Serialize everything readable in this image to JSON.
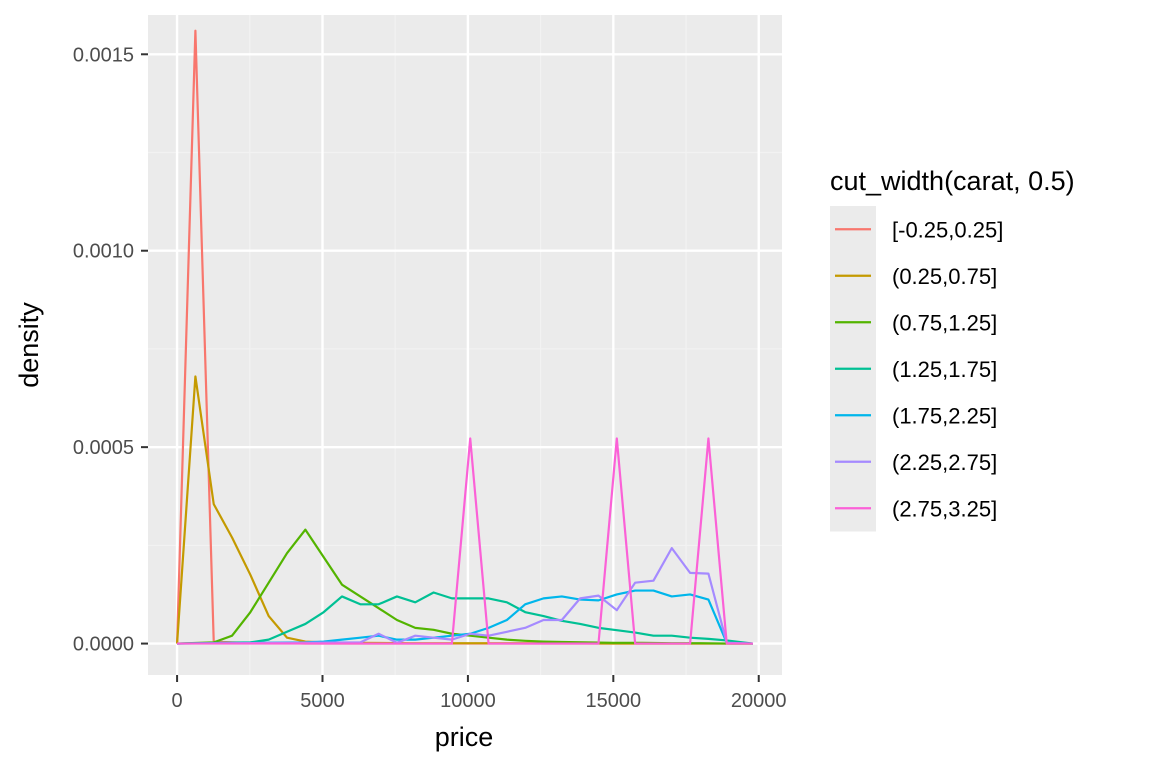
{
  "chart_data": {
    "type": "line",
    "xlabel": "price",
    "ylabel": "density",
    "xlim": [
      -1000,
      20800
    ],
    "ylim": [
      -8e-05,
      0.0016
    ],
    "x_ticks": [
      0,
      5000,
      10000,
      15000,
      20000
    ],
    "x_tick_labels": [
      "0",
      "5000",
      "10000",
      "15000",
      "20000"
    ],
    "y_ticks": [
      0,
      0.0005,
      0.001,
      0.0015
    ],
    "y_tick_labels": [
      "0.0000",
      "0.0005",
      "0.0010",
      "0.0015"
    ],
    "grid": true,
    "legend": {
      "title": "cut_width(carat, 0.5)",
      "position": "right"
    },
    "series": [
      {
        "name": "[-0.25,0.25]",
        "color": "#F8766D",
        "x": [
          0,
          630,
          1260,
          1890,
          2520,
          3150,
          3780,
          4410,
          5040,
          19800
        ],
        "y": [
          0,
          0.00156,
          5e-06,
          3e-06,
          2e-06,
          1e-06,
          1e-06,
          0,
          0,
          0
        ]
      },
      {
        "name": "(0.25,0.75]",
        "color": "#C49A00",
        "x": [
          0,
          630,
          1260,
          1890,
          2520,
          3150,
          3780,
          4410,
          5040,
          6300,
          8000,
          10000,
          12000,
          15000,
          19800
        ],
        "y": [
          0,
          0.00068,
          0.000355,
          0.00027,
          0.000175,
          7e-05,
          1.5e-05,
          5e-06,
          3e-06,
          2e-06,
          1e-06,
          1e-06,
          1e-06,
          0,
          0
        ]
      },
      {
        "name": "(0.75,1.25]",
        "color": "#53B400",
        "x": [
          0,
          1260,
          1890,
          2520,
          3150,
          3780,
          4410,
          5040,
          5670,
          6300,
          6930,
          7560,
          8190,
          8820,
          9450,
          10080,
          10710,
          11340,
          11970,
          12600,
          13230,
          14000,
          15000,
          16000,
          17000,
          18000,
          19000,
          19800
        ],
        "y": [
          0,
          3e-06,
          2e-05,
          8e-05,
          0.000155,
          0.00023,
          0.00029,
          0.00022,
          0.00015,
          0.00012,
          9e-05,
          6e-05,
          4e-05,
          3.5e-05,
          2.5e-05,
          2e-05,
          1.5e-05,
          1e-05,
          7e-06,
          5e-06,
          4e-06,
          3e-06,
          2e-06,
          2e-06,
          1e-06,
          1e-06,
          0,
          0
        ]
      },
      {
        "name": "(1.25,1.75]",
        "color": "#00C094",
        "x": [
          0,
          2520,
          3150,
          3780,
          4410,
          5040,
          5670,
          6300,
          6930,
          7560,
          8190,
          8820,
          9450,
          10080,
          10710,
          11340,
          11970,
          12600,
          13230,
          13860,
          14490,
          15120,
          15750,
          16380,
          17010,
          17640,
          18270,
          18900,
          19800
        ],
        "y": [
          0,
          3e-06,
          1e-05,
          3e-05,
          5e-05,
          8e-05,
          0.00012,
          0.0001,
          0.0001,
          0.00012,
          0.000105,
          0.00013,
          0.000115,
          0.000115,
          0.000115,
          0.000105,
          8e-05,
          7e-05,
          5.8e-05,
          5e-05,
          4e-05,
          3.4e-05,
          2.8e-05,
          2e-05,
          2e-05,
          1.5e-05,
          1.2e-05,
          8e-06,
          0
        ]
      },
      {
        "name": "(1.75,2.25]",
        "color": "#00B6EB",
        "x": [
          0,
          4410,
          5040,
          5670,
          6300,
          6930,
          7560,
          8190,
          8820,
          9450,
          10080,
          10710,
          11340,
          11970,
          12600,
          13230,
          13860,
          14490,
          15120,
          15750,
          16380,
          17010,
          17640,
          18270,
          18900,
          19800
        ],
        "y": [
          0,
          3e-06,
          5e-06,
          1e-05,
          1.5e-05,
          2e-05,
          1e-05,
          1e-05,
          1.5e-05,
          2e-05,
          2.5e-05,
          4e-05,
          6e-05,
          0.0001,
          0.000115,
          0.00012,
          0.000112,
          0.00011,
          0.000125,
          0.000135,
          0.000135,
          0.00012,
          0.000125,
          0.000112,
          2e-06,
          0
        ]
      },
      {
        "name": "(2.25,2.75]",
        "color": "#A58AFF",
        "x": [
          0,
          6300,
          6930,
          7560,
          8190,
          8820,
          9450,
          10080,
          10710,
          11340,
          11970,
          12600,
          13230,
          13860,
          14490,
          15120,
          15750,
          16380,
          17010,
          17640,
          18270,
          18900,
          19800
        ],
        "y": [
          0,
          3e-06,
          2.5e-05,
          2e-06,
          2e-05,
          1.5e-05,
          1e-05,
          2.5e-05,
          2e-05,
          3e-05,
          4e-05,
          6e-05,
          6e-05,
          0.000115,
          0.000122,
          8.5e-05,
          0.000155,
          0.00016,
          0.000243,
          0.00018,
          0.000178,
          2e-06,
          0
        ]
      },
      {
        "name": "(2.75,3.25]",
        "color": "#FB61D7",
        "x": [
          0,
          9450,
          10080,
          10710,
          14490,
          15120,
          15750,
          17640,
          18270,
          18900,
          19800
        ],
        "y": [
          0,
          0,
          0.000522,
          0,
          0,
          0.000522,
          0,
          0,
          0.000522,
          0,
          0
        ]
      }
    ]
  }
}
